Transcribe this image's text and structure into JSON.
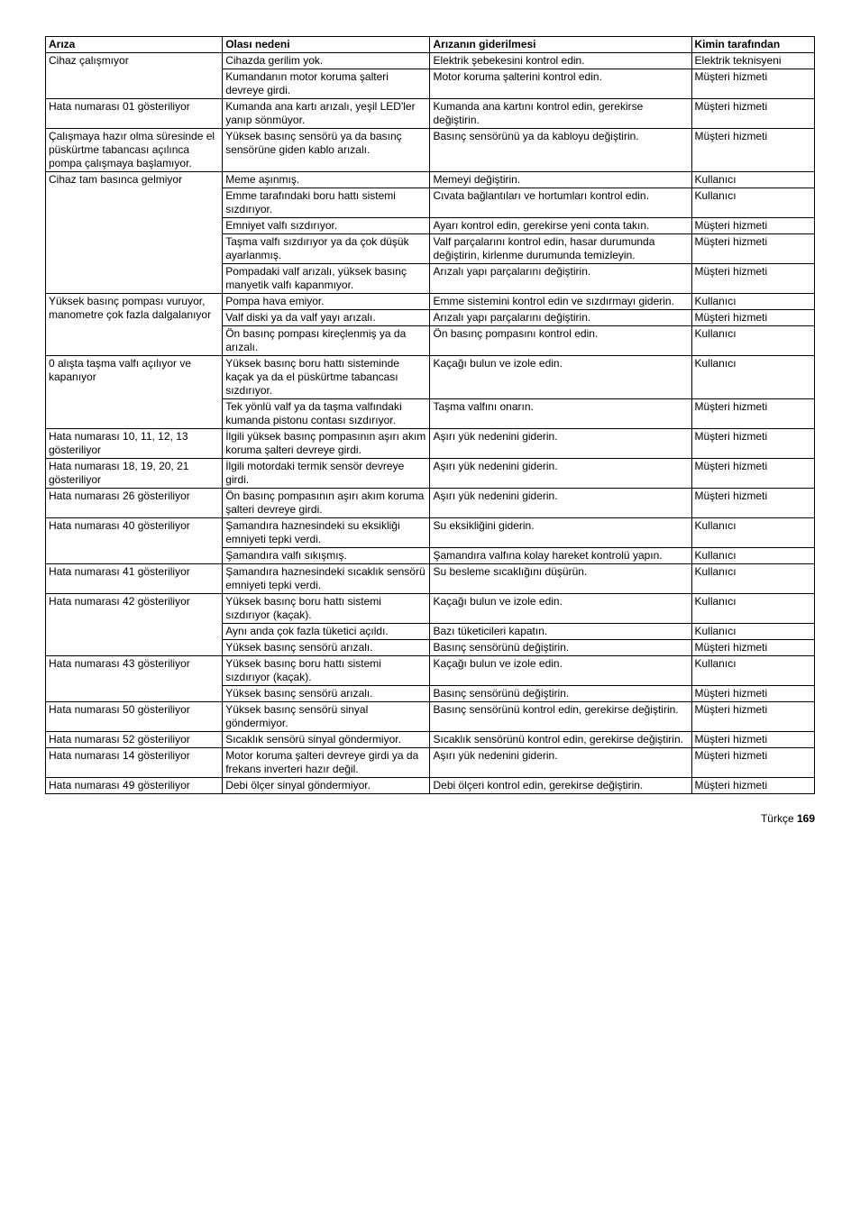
{
  "columns": [
    "Arıza",
    "Olası nedeni",
    "Arızanın giderilmesi",
    "Kimin tarafından"
  ],
  "rows": [
    {
      "c1": "Cihaz çalışmıyor",
      "c2": "Cihazda gerilim yok.",
      "c3": "Elektrik şebekesini kontrol edin.",
      "c4": "Elektrik teknisyeni",
      "span1": 2
    },
    {
      "c2": "Kumandanın motor koruma şalteri devreye girdi.",
      "c3": "Motor koruma şalterini kontrol edin.",
      "c4": "Müşteri hizmeti"
    },
    {
      "c1": "Hata numarası 01 gösteriliyor",
      "c2": "Kumanda ana kartı arızalı, yeşil LED'ler yanıp sönmüyor.",
      "c3": "Kumanda ana kartını kontrol edin, gerekirse değiştirin.",
      "c4": "Müşteri hizmeti"
    },
    {
      "c1": "Çalışmaya hazır olma süresinde el püskürtme tabancası açılınca pompa çalışmaya başlamıyor.",
      "c2": "Yüksek basınç sensörü ya da basınç sensörüne giden kablo arızalı.",
      "c3": "Basınç sensörünü ya da kabloyu değiştirin.",
      "c4": "Müşteri hizmeti"
    },
    {
      "c1": "Cihaz tam basınca gelmiyor",
      "c2": "Meme aşınmış.",
      "c3": "Memeyi değiştirin.",
      "c4": "Kullanıcı",
      "span1": 5
    },
    {
      "c2": "Emme tarafındaki boru hattı sistemi sızdırıyor.",
      "c3": "Cıvata bağlantıları ve hortumları kontrol edin.",
      "c4": "Kullanıcı"
    },
    {
      "c2": "Emniyet valfı sızdırıyor.",
      "c3": "Ayarı kontrol edin, gerekirse yeni conta takın.",
      "c4": "Müşteri hizmeti"
    },
    {
      "c2": "Taşma valfı sızdırıyor ya da çok düşük ayarlanmış.",
      "c3": "Valf parçalarını kontrol edin, hasar durumunda değiştirin, kirlenme durumunda temizleyin.",
      "c4": "Müşteri hizmeti"
    },
    {
      "c2": "Pompadaki valf arızalı, yüksek basınç manyetik valfı kapanmıyor.",
      "c3": "Arızalı yapı parçalarını değiştirin.",
      "c4": "Müşteri hizmeti"
    },
    {
      "c1": "Yüksek basınç pompası vuruyor, manometre çok fazla dalgalanıyor",
      "c2": "Pompa hava emiyor.",
      "c3": "Emme sistemini kontrol edin ve sızdırmayı giderin.",
      "c4": "Kullanıcı",
      "span1": 3
    },
    {
      "c2": "Valf diski ya da valf yayı arızalı.",
      "c3": "Arızalı yapı parçalarını değiştirin.",
      "c4": "Müşteri hizmeti"
    },
    {
      "c2": "Ön basınç pompası kireçlenmiş ya da arızalı.",
      "c3": "Ön basınç pompasını kontrol edin.",
      "c4": "Kullanıcı"
    },
    {
      "c1": "0 alışta taşma valfı açılıyor ve kapanıyor",
      "c2": "Yüksek basınç boru hattı sisteminde kaçak ya da el püskürtme tabancası sızdırıyor.",
      "c3": "Kaçağı bulun ve izole edin.",
      "c4": "Kullanıcı",
      "span1": 2
    },
    {
      "c2": "Tek yönlü valf ya da taşma valfındaki kumanda pistonu contası sızdırıyor.",
      "c3": "Taşma valfını onarın.",
      "c4": "Müşteri hizmeti"
    },
    {
      "c1": "Hata numarası 10, 11, 12, 13 gösteriliyor",
      "c2": "İlgili yüksek basınç pompasının aşırı akım koruma şalteri devreye girdi.",
      "c3": "Aşırı yük nedenini giderin.",
      "c4": "Müşteri hizmeti"
    },
    {
      "c1": "Hata numarası 18, 19, 20, 21 gösteriliyor",
      "c2": "İlgili motordaki termik sensör devreye girdi.",
      "c3": "Aşırı yük nedenini giderin.",
      "c4": "Müşteri hizmeti"
    },
    {
      "c1": "Hata numarası 26 gösteriliyor",
      "c2": "Ön basınç pompasının aşırı akım koruma şalteri devreye girdi.",
      "c3": "Aşırı yük nedenini giderin.",
      "c4": "Müşteri hizmeti"
    },
    {
      "c1": "Hata numarası 40 gösteriliyor",
      "c2": "Şamandıra haznesindeki su eksikliği emniyeti tepki verdi.",
      "c3": "Su eksikliğini giderin.",
      "c4": "Kullanıcı",
      "span1": 2
    },
    {
      "c2": "Şamandıra valfı sıkışmış.",
      "c3": "Şamandıra valfına kolay hareket kontrolü yapın.",
      "c4": "Kullanıcı"
    },
    {
      "c1": "Hata numarası 41 gösteriliyor",
      "c2": "Şamandıra haznesindeki sıcaklık sensörü emniyeti tepki verdi.",
      "c3": "Su besleme sıcaklığını düşürün.",
      "c4": "Kullanıcı"
    },
    {
      "c1": "Hata numarası 42 gösteriliyor",
      "c2": "Yüksek basınç boru hattı sistemi sızdırıyor (kaçak).",
      "c3": "Kaçağı bulun ve izole edin.",
      "c4": "Kullanıcı",
      "span1": 3
    },
    {
      "c2": "Aynı anda çok fazla tüketici açıldı.",
      "c3": "Bazı tüketicileri kapatın.",
      "c4": "Kullanıcı"
    },
    {
      "c2": "Yüksek basınç sensörü arızalı.",
      "c3": "Basınç sensörünü değiştirin.",
      "c4": "Müşteri hizmeti"
    },
    {
      "c1": "Hata numarası 43 gösteriliyor",
      "c2": "Yüksek basınç boru hattı sistemi sızdırıyor (kaçak).",
      "c3": "Kaçağı bulun ve izole edin.",
      "c4": "Kullanıcı",
      "span1": 2
    },
    {
      "c2": "Yüksek basınç sensörü arızalı.",
      "c3": "Basınç sensörünü değiştirin.",
      "c4": "Müşteri hizmeti"
    },
    {
      "c1": "Hata numarası 50 gösteriliyor",
      "c2": "Yüksek basınç sensörü sinyal göndermiyor.",
      "c3": "Basınç sensörünü kontrol edin, gerekirse değiştirin.",
      "c4": "Müşteri hizmeti"
    },
    {
      "c1": "Hata numarası 52 gösteriliyor",
      "c2": "Sıcaklık sensörü sinyal göndermiyor.",
      "c3": "Sıcaklık sensörünü kontrol edin, gerekirse değiştirin.",
      "c4": "Müşteri hizmeti"
    },
    {
      "c1": "Hata numarası 14 gösteriliyor",
      "c2": "Motor koruma şalteri devreye girdi ya da frekans inverteri hazır değil.",
      "c3": "Aşırı yük nedenini giderin.",
      "c4": "Müşteri hizmeti"
    },
    {
      "c1": "Hata numarası 49 gösteriliyor",
      "c2": "Debi ölçer sinyal göndermiyor.",
      "c3": "Debi ölçeri kontrol edin, gerekirse değiştirin.",
      "c4": "Müşteri hizmeti"
    }
  ],
  "footer_label": "Türkçe",
  "footer_page": "169"
}
